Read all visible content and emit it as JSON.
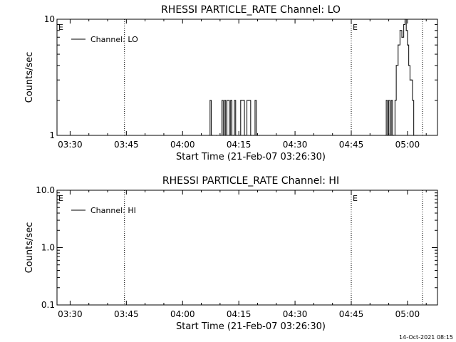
{
  "timestamp": "14-Oct-2021 08:15",
  "chart_data": [
    {
      "type": "line",
      "title": "RHESSI PARTICLE_RATE Channel: LO",
      "xlabel": "Start Time (21-Feb-07 03:26:30)",
      "ylabel": "Counts/sec",
      "yscale": "log",
      "ylim": [
        1,
        10
      ],
      "ytick_labels": [
        "1",
        "10"
      ],
      "xlim": [
        "03:26:30",
        "05:08:00"
      ],
      "xtick_labels": [
        "03:30",
        "03:45",
        "04:00",
        "04:15",
        "04:30",
        "04:45",
        "05:00"
      ],
      "legend": "top-left",
      "event_marker_label": "E",
      "event_lines": [
        "03:44:30",
        "04:45:00",
        "05:04:00"
      ],
      "series": [
        {
          "name": "Channel: LO",
          "color": "#000000",
          "x": [
            "04:07:00",
            "04:07:20",
            "04:07:40",
            "04:08:00",
            "04:09:00",
            "04:10:10",
            "04:10:30",
            "04:10:50",
            "04:11:10",
            "04:11:30",
            "04:11:50",
            "04:12:10",
            "04:12:30",
            "04:12:50",
            "04:13:10",
            "04:13:30",
            "04:13:50",
            "04:14:10",
            "04:14:30",
            "04:15:10",
            "04:15:30",
            "04:15:50",
            "04:16:10",
            "04:16:30",
            "04:16:50",
            "04:17:10",
            "04:17:30",
            "04:17:50",
            "04:18:10",
            "04:18:30",
            "04:18:50",
            "04:19:20",
            "04:19:40",
            "04:20:00",
            "04:20:30",
            "04:54:00",
            "04:54:20",
            "04:54:40",
            "04:55:00",
            "04:55:20",
            "04:55:40",
            "04:56:00",
            "04:56:20",
            "04:56:40",
            "04:57:00",
            "04:57:30",
            "04:58:00",
            "04:58:30",
            "04:59:00",
            "04:59:20",
            "04:59:40",
            "05:00:00",
            "05:00:20",
            "05:00:40",
            "05:01:00",
            "05:01:20",
            "05:01:40",
            "05:02:00",
            "05:02:30"
          ],
          "y": [
            1,
            2,
            1,
            1,
            1,
            1,
            2,
            1,
            2,
            1,
            2,
            2,
            1,
            2,
            1,
            1,
            2,
            1,
            1,
            1,
            2,
            2,
            2,
            1,
            1,
            2,
            2,
            2,
            1,
            1,
            1,
            2,
            1,
            1,
            1,
            1,
            2,
            1,
            2,
            1,
            2,
            1,
            1,
            2,
            4,
            6,
            8,
            7,
            9,
            10,
            8,
            6,
            4,
            3,
            3,
            2,
            1,
            1,
            1
          ]
        }
      ]
    },
    {
      "type": "line",
      "title": "RHESSI PARTICLE_RATE Channel: HI",
      "xlabel": "Start Time (21-Feb-07 03:26:30)",
      "ylabel": "Counts/sec",
      "yscale": "log",
      "ylim": [
        0.1,
        10
      ],
      "ytick_labels": [
        "0.1",
        "1.0",
        "10.0"
      ],
      "xlim": [
        "03:26:30",
        "05:08:00"
      ],
      "xtick_labels": [
        "03:30",
        "03:45",
        "04:00",
        "04:15",
        "04:30",
        "04:45",
        "05:00"
      ],
      "legend": "top-left",
      "event_marker_label": "E",
      "event_lines": [
        "03:44:30",
        "04:45:00",
        "05:04:00"
      ],
      "series": [
        {
          "name": "Channel: HI",
          "color": "#000000",
          "x": [],
          "y": []
        }
      ]
    }
  ]
}
